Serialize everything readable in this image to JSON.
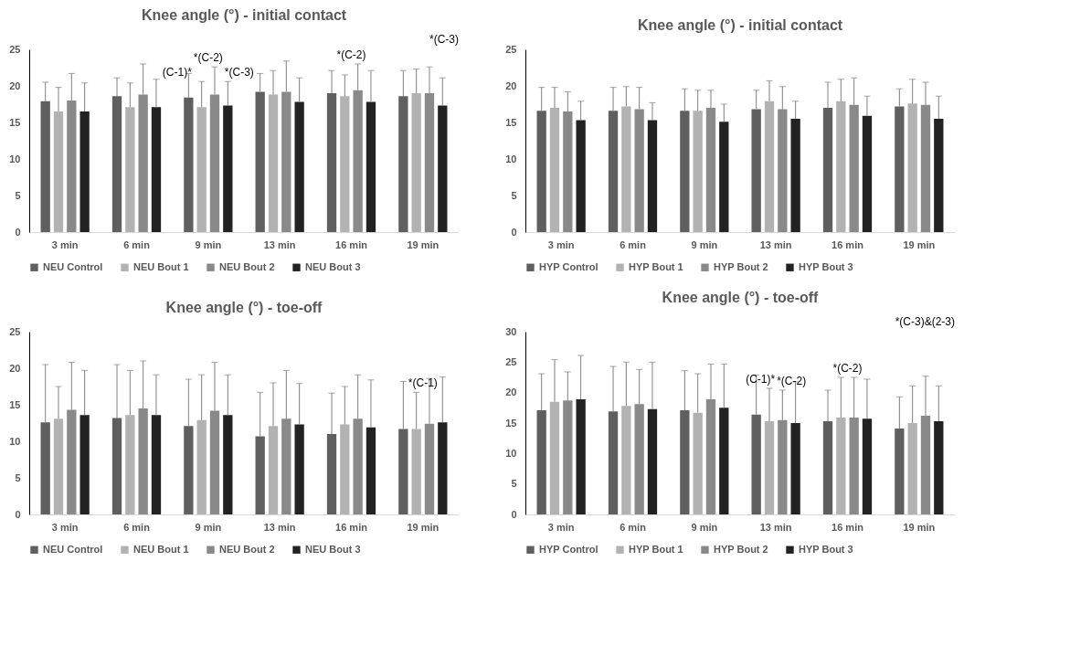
{
  "chart_data": [
    {
      "type": "bar",
      "title": "Knee angle (°)  - initial contact",
      "categories": [
        "3 min",
        "6 min",
        "9 min",
        "13 min",
        "16 min",
        "19 min"
      ],
      "ylim": [
        0,
        25
      ],
      "yticks": [
        0,
        5,
        10,
        15,
        20,
        25
      ],
      "legend": "bottom",
      "series": [
        {
          "name": "NEU Control",
          "color": "#5f5f5f",
          "values": [
            17.9,
            18.6,
            18.4,
            19.2,
            19.0,
            18.6
          ],
          "errors": [
            [
              17.9,
              20.5
            ],
            [
              18.6,
              21.1
            ],
            [
              18.4,
              21.7
            ],
            [
              19.2,
              21.7
            ],
            [
              19.0,
              22.1
            ],
            [
              18.6,
              22.1
            ]
          ]
        },
        {
          "name": "NEU Bout 1",
          "color": "#b2b2b2",
          "values": [
            16.5,
            17.1,
            17.1,
            18.8,
            18.6,
            19.0
          ],
          "errors": [
            [
              16.5,
              19.8
            ],
            [
              17.1,
              20.4
            ],
            [
              17.1,
              20.6
            ],
            [
              18.8,
              22.1
            ],
            [
              18.6,
              21.5
            ],
            [
              19.0,
              22.3
            ]
          ]
        },
        {
          "name": "NEU Bout 2",
          "color": "#898989",
          "values": [
            18.0,
            18.8,
            18.8,
            19.2,
            19.4,
            19.0
          ],
          "errors": [
            [
              18.0,
              21.7
            ],
            [
              18.8,
              23.0
            ],
            [
              18.8,
              22.6
            ],
            [
              19.2,
              23.4
            ],
            [
              19.4,
              23.0
            ],
            [
              19.0,
              22.6
            ]
          ]
        },
        {
          "name": "NEU Bout 3",
          "color": "#222222",
          "values": [
            16.5,
            17.1,
            17.3,
            17.8,
            17.8,
            17.3
          ],
          "errors": [
            [
              16.5,
              20.4
            ],
            [
              17.1,
              20.9
            ],
            [
              17.3,
              20.6
            ],
            [
              17.8,
              21.1
            ],
            [
              17.8,
              22.1
            ],
            [
              17.3,
              21.1
            ]
          ]
        }
      ],
      "annotations": [
        {
          "text": "(C-1)*",
          "x": "9 min",
          "y": 20.6
        },
        {
          "text": "*(C-2)",
          "x": "9 min",
          "y": 22.6
        },
        {
          "text": "*(C-3)",
          "x": "9 min",
          "y": 20.6
        },
        {
          "text": "*(C-2)",
          "x": "16 min",
          "y": 23.0
        },
        "*(C-3)"
      ]
    },
    {
      "type": "bar",
      "title": "Knee angle (°)  - initial contact",
      "categories": [
        "3 min",
        "6 min",
        "9 min",
        "13 min",
        "16 min",
        "19 min"
      ],
      "ylim": [
        0,
        25
      ],
      "yticks": [
        0,
        5,
        10,
        15,
        20,
        25
      ],
      "legend": "bottom",
      "series": [
        {
          "name": "HYP Control",
          "color": "#5f5f5f",
          "values": [
            16.6,
            16.6,
            16.6,
            16.8,
            17.0,
            17.2
          ],
          "errors": [
            [
              16.6,
              19.8
            ],
            [
              16.6,
              19.8
            ],
            [
              16.6,
              19.6
            ],
            [
              16.8,
              19.4
            ],
            [
              17.0,
              20.5
            ],
            [
              17.2,
              19.6
            ]
          ]
        },
        {
          "name": "HYP Bout 1",
          "color": "#b2b2b2",
          "values": [
            17.0,
            17.2,
            16.6,
            17.9,
            17.9,
            17.6
          ],
          "errors": [
            [
              17.0,
              19.8
            ],
            [
              17.2,
              19.9
            ],
            [
              16.6,
              19.4
            ],
            [
              17.9,
              20.7
            ],
            [
              17.9,
              20.9
            ],
            [
              17.6,
              20.9
            ]
          ]
        },
        {
          "name": "HYP Bout 2",
          "color": "#898989",
          "values": [
            16.5,
            16.8,
            17.0,
            16.8,
            17.4,
            17.4
          ],
          "errors": [
            [
              16.5,
              19.2
            ],
            [
              16.8,
              19.8
            ],
            [
              17.0,
              19.4
            ],
            [
              16.8,
              19.9
            ],
            [
              17.4,
              21.1
            ],
            [
              17.4,
              20.5
            ]
          ]
        },
        {
          "name": "HYP Bout 3",
          "color": "#222222",
          "values": [
            15.3,
            15.3,
            15.1,
            15.5,
            15.9,
            15.5
          ],
          "errors": [
            [
              15.3,
              17.9
            ],
            [
              15.3,
              17.7
            ],
            [
              15.1,
              17.5
            ],
            [
              15.5,
              17.9
            ],
            [
              15.9,
              18.6
            ],
            [
              15.5,
              18.6
            ]
          ]
        }
      ]
    },
    {
      "type": "bar",
      "title": "Knee angle (°)  - toe-off",
      "categories": [
        "3 min",
        "6 min",
        "9 min",
        "13 min",
        "16 min",
        "19 min"
      ],
      "ylim": [
        0,
        25
      ],
      "yticks": [
        0,
        5,
        10,
        15,
        20,
        25
      ],
      "legend": "bottom",
      "series": [
        {
          "name": "NEU Control",
          "color": "#5f5f5f",
          "values": [
            12.6,
            13.2,
            12.1,
            10.7,
            11.0,
            11.7
          ],
          "errors": [
            [
              12.6,
              20.5
            ],
            [
              13.2,
              20.5
            ],
            [
              12.1,
              18.5
            ],
            [
              10.7,
              16.7
            ],
            [
              11.0,
              16.6
            ],
            [
              11.7,
              18.2
            ]
          ]
        },
        {
          "name": "NEU Bout 1",
          "color": "#b2b2b2",
          "values": [
            13.1,
            13.6,
            12.9,
            12.1,
            12.3,
            11.7
          ],
          "errors": [
            [
              13.1,
              17.5
            ],
            [
              13.6,
              19.7
            ],
            [
              12.9,
              19.1
            ],
            [
              12.1,
              18.0
            ],
            [
              12.3,
              17.5
            ],
            [
              11.7,
              16.7
            ]
          ]
        },
        {
          "name": "NEU Bout 2",
          "color": "#898989",
          "values": [
            14.3,
            14.5,
            14.2,
            13.1,
            13.1,
            12.4
          ],
          "errors": [
            [
              14.3,
              20.8
            ],
            [
              14.5,
              21.0
            ],
            [
              14.2,
              20.8
            ],
            [
              13.1,
              19.7
            ],
            [
              13.1,
              19.1
            ],
            [
              12.4,
              18.6
            ]
          ]
        },
        {
          "name": "NEU Bout 3",
          "color": "#222222",
          "values": [
            13.6,
            13.6,
            13.6,
            12.3,
            11.9,
            12.6
          ],
          "errors": [
            [
              13.6,
              19.7
            ],
            [
              13.6,
              19.1
            ],
            [
              13.6,
              19.1
            ],
            [
              12.3,
              17.9
            ],
            [
              11.9,
              18.4
            ],
            [
              12.6,
              18.8
            ]
          ]
        }
      ],
      "annotations": [
        {
          "text": "*(C-1)",
          "x": "19 min",
          "y": 16.7
        }
      ]
    },
    {
      "type": "bar",
      "title": "Knee angle (°)  - toe-off",
      "categories": [
        "3 min",
        "6 min",
        "9 min",
        "13 min",
        "16 min",
        "19 min"
      ],
      "ylim": [
        0,
        30
      ],
      "yticks": [
        0,
        5,
        10,
        15,
        20,
        25,
        30
      ],
      "legend": "bottom",
      "series": [
        {
          "name": "HYP Control",
          "color": "#5f5f5f",
          "values": [
            17.1,
            16.9,
            17.1,
            16.4,
            15.3,
            14.1
          ],
          "errors": [
            [
              17.1,
              23.1
            ],
            [
              16.9,
              24.3
            ],
            [
              17.1,
              23.6
            ],
            [
              16.4,
              22.9
            ],
            [
              15.3,
              20.4
            ],
            [
              14.1,
              19.3
            ]
          ]
        },
        {
          "name": "HYP Bout 1",
          "color": "#b2b2b2",
          "values": [
            18.5,
            17.8,
            16.7,
            15.3,
            15.9,
            15.0
          ],
          "errors": [
            [
              18.5,
              25.4
            ],
            [
              17.8,
              25.0
            ],
            [
              16.7,
              23.1
            ],
            [
              15.3,
              20.7
            ],
            [
              15.9,
              22.5
            ],
            [
              15.0,
              21.1
            ]
          ]
        },
        {
          "name": "HYP Bout 2",
          "color": "#898989",
          "values": [
            18.7,
            18.1,
            18.9,
            15.5,
            15.9,
            16.2
          ],
          "errors": [
            [
              18.7,
              23.4
            ],
            [
              18.1,
              23.8
            ],
            [
              18.9,
              24.7
            ],
            [
              15.5,
              20.4
            ],
            [
              15.9,
              22.5
            ],
            [
              16.2,
              22.7
            ]
          ]
        },
        {
          "name": "HYP Bout 3",
          "color": "#222222",
          "values": [
            18.9,
            17.3,
            17.5,
            15.0,
            15.7,
            15.3
          ],
          "errors": [
            [
              18.9,
              26.1
            ],
            [
              17.3,
              25.0
            ],
            [
              17.5,
              24.7
            ],
            [
              15.0,
              21.8
            ],
            [
              15.7,
              22.2
            ],
            [
              15.3,
              21.1
            ]
          ]
        }
      ],
      "annotations": [
        {
          "text": "(C-1)*",
          "x": "13 min",
          "y": 20.7
        },
        "*(C-3)&(2-3)",
        {
          "text": "*(C-2)",
          "x": "13 min",
          "y": 20.4
        },
        {
          "text": "*(C-2)",
          "x": "16 min",
          "y": 22.5
        }
      ]
    }
  ]
}
